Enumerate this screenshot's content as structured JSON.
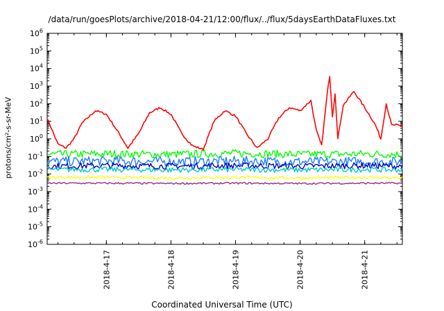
{
  "chart_data": {
    "type": "line",
    "title": "/data/run/goesPlots/archive/2018-04-21/12:00/flux/../flux/5daysEarthDataFluxes.txt",
    "xlabel": "Coordinated Universal Time (UTC)",
    "ylabel": "protons/cm²-s-sr-MeV",
    "y_scale": "log",
    "ylim": [
      1e-06,
      1000000.0
    ],
    "xlim": [
      "2018-04-16 02:00",
      "2018-04-21 14:00"
    ],
    "grid": false,
    "legend": "none",
    "x_ticks": [
      "2018-4-17",
      "2018-4-18",
      "2018-4-19",
      "2018-4-20",
      "2018-4-21"
    ],
    "y_ticks": [
      {
        "mant": "10",
        "exp": "-6"
      },
      {
        "mant": "10",
        "exp": "-5"
      },
      {
        "mant": "10",
        "exp": "-4"
      },
      {
        "mant": "10",
        "exp": "-3"
      },
      {
        "mant": "10",
        "exp": "-2"
      },
      {
        "mant": "10",
        "exp": "-1"
      },
      {
        "mant": "10",
        "exp": "0"
      },
      {
        "mant": "10",
        "exp": "1"
      },
      {
        "mant": "10",
        "exp": "2"
      },
      {
        "mant": "10",
        "exp": "3"
      },
      {
        "mant": "10",
        "exp": "4"
      },
      {
        "mant": "10",
        "exp": "5"
      },
      {
        "mant": "10",
        "exp": "6"
      }
    ],
    "series": [
      {
        "color": "#ff0000",
        "x": [
          "2018-04-16 02:00",
          "2018-04-16 06:00",
          "2018-04-16 09:00",
          "2018-04-16 12:00",
          "2018-04-16 15:00",
          "2018-04-16 20:00",
          "2018-04-17 00:00",
          "2018-04-17 04:00",
          "2018-04-17 08:00",
          "2018-04-17 12:00",
          "2018-04-17 16:00",
          "2018-04-17 20:00",
          "2018-04-18 00:00",
          "2018-04-18 04:00",
          "2018-04-18 08:00",
          "2018-04-18 12:00",
          "2018-04-18 16:00",
          "2018-04-18 20:00",
          "2018-04-19 00:00",
          "2018-04-19 04:00",
          "2018-04-19 08:00",
          "2018-04-19 12:00",
          "2018-04-19 16:00",
          "2018-04-19 20:00",
          "2018-04-20 00:00",
          "2018-04-20 04:00",
          "2018-04-20 06:00",
          "2018-04-20 08:00",
          "2018-04-20 10:00",
          "2018-04-20 11:00",
          "2018-04-20 12:00",
          "2018-04-20 13:00",
          "2018-04-20 14:00",
          "2018-04-20 16:00",
          "2018-04-20 18:00",
          "2018-04-20 20:00",
          "2018-04-21 00:00",
          "2018-04-21 02:00",
          "2018-04-21 04:00",
          "2018-04-21 06:00",
          "2018-04-21 08:00",
          "2018-04-21 10:00",
          "2018-04-21 12:00",
          "2018-04-21 14:00"
        ],
        "y": [
          15,
          0.5,
          0.3,
          1,
          8,
          40,
          25,
          3,
          0.3,
          2,
          30,
          60,
          25,
          2,
          0.4,
          0.25,
          10,
          40,
          20,
          2,
          0.3,
          1,
          15,
          60,
          40,
          150,
          3,
          0.4,
          300,
          4000,
          20,
          400,
          1,
          80,
          200,
          500,
          60,
          20,
          6,
          1,
          100,
          6,
          6,
          5
        ]
      },
      {
        "color": "#00ff00",
        "x": [
          "2018-04-16 02:00",
          "2018-04-17 00:00",
          "2018-04-18 00:00",
          "2018-04-19 00:00",
          "2018-04-20 00:00",
          "2018-04-21 00:00",
          "2018-04-21 14:00"
        ],
        "y": [
          0.13,
          0.14,
          0.13,
          0.15,
          0.13,
          0.14,
          0.13
        ]
      },
      {
        "color": "#1e7bff",
        "x": [
          "2018-04-16 02:00",
          "2018-04-17 00:00",
          "2018-04-18 00:00",
          "2018-04-19 00:00",
          "2018-04-20 00:00",
          "2018-04-21 00:00",
          "2018-04-21 14:00"
        ],
        "y": [
          0.05,
          0.055,
          0.05,
          0.055,
          0.05,
          0.05,
          0.05
        ]
      },
      {
        "color": "#0000b4",
        "x": [
          "2018-04-16 02:00",
          "2018-04-17 00:00",
          "2018-04-18 00:00",
          "2018-04-19 00:00",
          "2018-04-20 00:00",
          "2018-04-21 00:00",
          "2018-04-21 14:00"
        ],
        "y": [
          0.028,
          0.03,
          0.028,
          0.03,
          0.028,
          0.03,
          0.028
        ]
      },
      {
        "color": "#00c8c8",
        "x": [
          "2018-04-16 02:00",
          "2018-04-17 00:00",
          "2018-04-18 00:00",
          "2018-04-19 00:00",
          "2018-04-20 00:00",
          "2018-04-21 00:00",
          "2018-04-21 14:00"
        ],
        "y": [
          0.018,
          0.018,
          0.017,
          0.018,
          0.017,
          0.018,
          0.017
        ]
      },
      {
        "color": "#ffff00",
        "x": [
          "2018-04-16 02:00",
          "2018-04-17 00:00",
          "2018-04-18 00:00",
          "2018-04-19 00:00",
          "2018-04-20 00:00",
          "2018-04-21 00:00",
          "2018-04-21 14:00"
        ],
        "y": [
          0.0065,
          0.0065,
          0.006,
          0.0065,
          0.006,
          0.0065,
          0.006
        ]
      },
      {
        "color": "#8b2e8b",
        "x": [
          "2018-04-16 02:00",
          "2018-04-17 00:00",
          "2018-04-18 00:00",
          "2018-04-19 00:00",
          "2018-04-20 00:00",
          "2018-04-21 00:00",
          "2018-04-21 14:00"
        ],
        "y": [
          0.003,
          0.003,
          0.0029,
          0.003,
          0.0029,
          0.003,
          0.003
        ]
      }
    ]
  }
}
